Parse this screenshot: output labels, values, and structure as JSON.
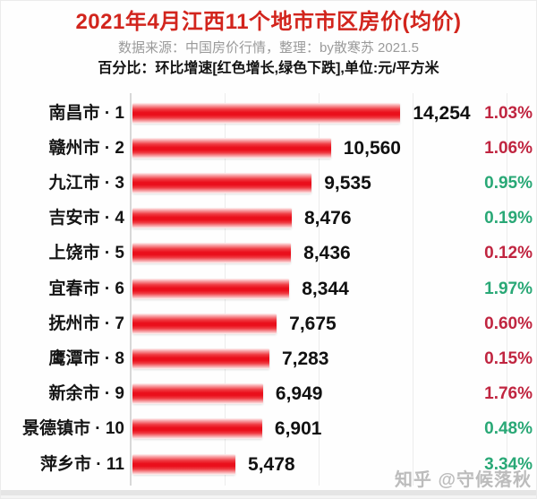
{
  "header": {
    "title": "2021年4月江西11个地市市区房价(均价)",
    "subtitle": "数据来源：中国房价行情，整理：by散寒苏 2021.5",
    "note": "百分比：环比增速[红色增长,绿色下跌],单位:元/平方米"
  },
  "watermark": "知乎 @守候落秋",
  "chart_data": {
    "type": "bar",
    "orientation": "horizontal",
    "title": "2021年4月江西11个地市市区房价(均价)",
    "unit": "元/平方米",
    "xlim": [
      0,
      20000
    ],
    "gridline_step": 5000,
    "grid": true,
    "legend": "none",
    "colors": {
      "bar": "#ea0f1b",
      "increase": "#c02540",
      "decrease": "#29a876",
      "title": "#d2251d"
    },
    "rows": [
      {
        "city": "南昌市",
        "rank": 1,
        "label": "南昌市 · 1",
        "value": 14254,
        "value_label": "14,254",
        "change_pct": "1.03%",
        "direction": "increase"
      },
      {
        "city": "赣州市",
        "rank": 2,
        "label": "赣州市 · 2",
        "value": 10560,
        "value_label": "10,560",
        "change_pct": "1.06%",
        "direction": "increase"
      },
      {
        "city": "九江市",
        "rank": 3,
        "label": "九江市 · 3",
        "value": 9535,
        "value_label": "9,535",
        "change_pct": "0.95%",
        "direction": "decrease"
      },
      {
        "city": "吉安市",
        "rank": 4,
        "label": "吉安市 · 4",
        "value": 8476,
        "value_label": "8,476",
        "change_pct": "0.19%",
        "direction": "decrease"
      },
      {
        "city": "上饶市",
        "rank": 5,
        "label": "上饶市 · 5",
        "value": 8436,
        "value_label": "8,436",
        "change_pct": "0.12%",
        "direction": "increase"
      },
      {
        "city": "宜春市",
        "rank": 6,
        "label": "宜春市 · 6",
        "value": 8344,
        "value_label": "8,344",
        "change_pct": "1.97%",
        "direction": "decrease"
      },
      {
        "city": "抚州市",
        "rank": 7,
        "label": "抚州市 · 7",
        "value": 7675,
        "value_label": "7,675",
        "change_pct": "0.60%",
        "direction": "increase"
      },
      {
        "city": "鹰潭市",
        "rank": 8,
        "label": "鹰潭市 · 8",
        "value": 7283,
        "value_label": "7,283",
        "change_pct": "0.15%",
        "direction": "increase"
      },
      {
        "city": "新余市",
        "rank": 9,
        "label": "新余市 · 9",
        "value": 6949,
        "value_label": "6,949",
        "change_pct": "1.76%",
        "direction": "increase"
      },
      {
        "city": "景德镇市",
        "rank": 10,
        "label": "景德镇市 · 10",
        "value": 6901,
        "value_label": "6,901",
        "change_pct": "0.48%",
        "direction": "decrease"
      },
      {
        "city": "萍乡市",
        "rank": 11,
        "label": "萍乡市 · 11",
        "value": 5478,
        "value_label": "5,478",
        "change_pct": "3.34%",
        "direction": "decrease"
      }
    ]
  }
}
